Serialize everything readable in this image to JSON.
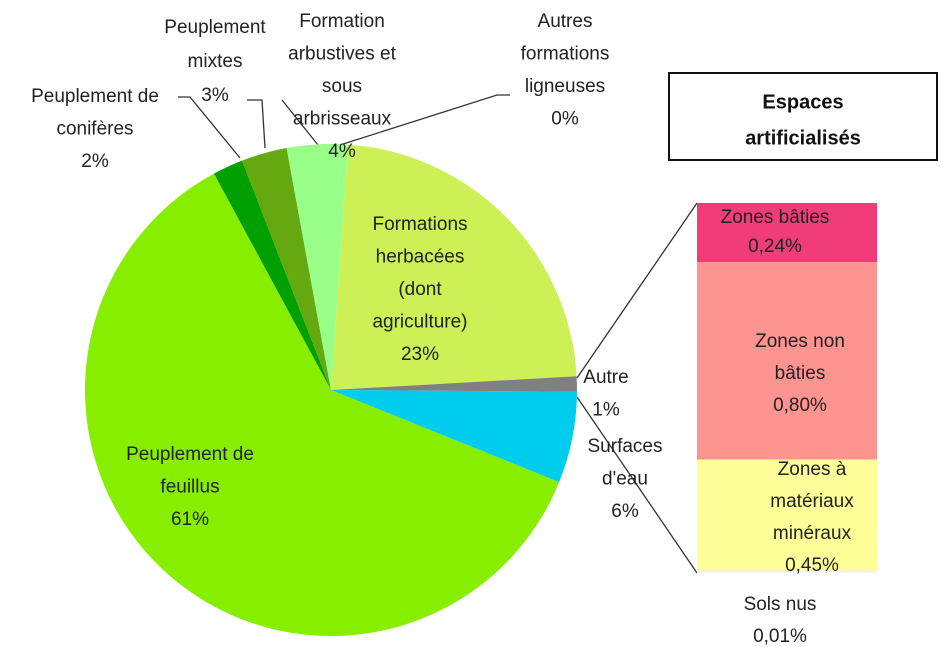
{
  "chart_data": {
    "type": "pie-of-bar",
    "categories": [
      [
        "Formations",
        "herbacées",
        "(dont",
        "agriculture)"
      ],
      [
        "Autre"
      ],
      [
        "Surfaces",
        "d'eau"
      ],
      [
        "Peuplement de",
        "feuillus"
      ],
      [
        "Peuplement de",
        "conifères"
      ],
      [
        "Peuplement",
        "mixtes"
      ],
      [
        "Formation",
        "arbustives et",
        "sous",
        "arbrisseaux"
      ],
      [
        "Autres",
        "formations",
        "ligneuses"
      ]
    ],
    "values": [
      23,
      1,
      6,
      61,
      2,
      3,
      4,
      0
    ],
    "value_labels": [
      "23%",
      "1%",
      "6%",
      "61%",
      "2%",
      "3%",
      "4%",
      "0%"
    ],
    "colors": [
      "#ccf055",
      "#808080",
      "#00ccee",
      "#88ee00",
      "#00a000",
      "#66a810",
      "#99ff88",
      "#bbbbbb"
    ],
    "bar": {
      "title": [
        "Espaces",
        "artificialisés"
      ],
      "categories": [
        [
          "Zones bâties"
        ],
        [
          "Zones non",
          "bâties"
        ],
        [
          "Zones à",
          "matériaux",
          "minéraux"
        ],
        [
          "Sols nus"
        ]
      ],
      "values": [
        0.24,
        0.8,
        0.45,
        0.01
      ],
      "value_labels": [
        "0,24%",
        "0,80%",
        "0,45%",
        "0,01%"
      ],
      "colors": [
        "#f03c78",
        "#fe9490",
        "#ffff99",
        "#f4f4f4"
      ]
    }
  }
}
